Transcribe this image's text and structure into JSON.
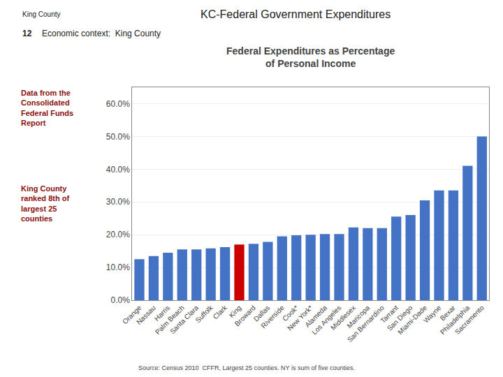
{
  "chart_data": {
    "type": "bar",
    "title": "Federal Expenditures as Percentage\nof Personal Income",
    "categories": [
      "Orange",
      "Nassau",
      "Harris",
      "Palm Beach",
      "Santa Clara",
      "Suffolk",
      "Clark",
      "King",
      "Broward",
      "Dallas",
      "Riverside",
      "Cook*",
      "New York*",
      "Alameda",
      "Los Angeles",
      "Middlesex",
      "Maricopa",
      "San Bernardino",
      "Tarrant",
      "San Diego",
      "Miami-Dade",
      "Wayne",
      "Bexar",
      "Philadelphia",
      "Sacramento"
    ],
    "values": [
      12.5,
      13.5,
      14.5,
      15.5,
      15.5,
      15.8,
      16.2,
      17.0,
      17.2,
      17.8,
      19.5,
      19.8,
      20.0,
      20.2,
      20.2,
      22.2,
      22.0,
      22.0,
      25.5,
      26.0,
      30.5,
      33.5,
      33.5,
      41.0,
      50.0
    ],
    "colors": [
      "#4472C4",
      "#4472C4",
      "#4472C4",
      "#4472C4",
      "#4472C4",
      "#4472C4",
      "#4472C4",
      "#CC0000",
      "#4472C4",
      "#4472C4",
      "#4472C4",
      "#4472C4",
      "#4472C4",
      "#4472C4",
      "#4472C4",
      "#4472C4",
      "#4472C4",
      "#4472C4",
      "#4472C4",
      "#4472C4",
      "#4472C4",
      "#4472C4",
      "#4472C4",
      "#4472C4",
      "#4472C4"
    ],
    "ylim": [
      0,
      65
    ],
    "yticks": [
      {
        "value": 0,
        "label": "0.0%"
      },
      {
        "value": 10,
        "label": "10.0%"
      },
      {
        "value": 20,
        "label": "20.0%"
      },
      {
        "value": 30,
        "label": "30.0%"
      },
      {
        "value": 40,
        "label": "40.0%"
      },
      {
        "value": 50,
        "label": "50.0%"
      },
      {
        "value": 60,
        "label": "60.0%"
      }
    ],
    "grid": true,
    "annotations": [
      "King County",
      "KC-Federal Government Expenditures",
      "12",
      "Economic context:  King County",
      "Data from the\nConsolidated\nFederal Funds\nReport",
      "King County\nranked 8th of\nlargest 25\ncounties",
      "Source: Census 2010  CFFR, Largest 25 counties. NY is sum of five counties."
    ]
  }
}
